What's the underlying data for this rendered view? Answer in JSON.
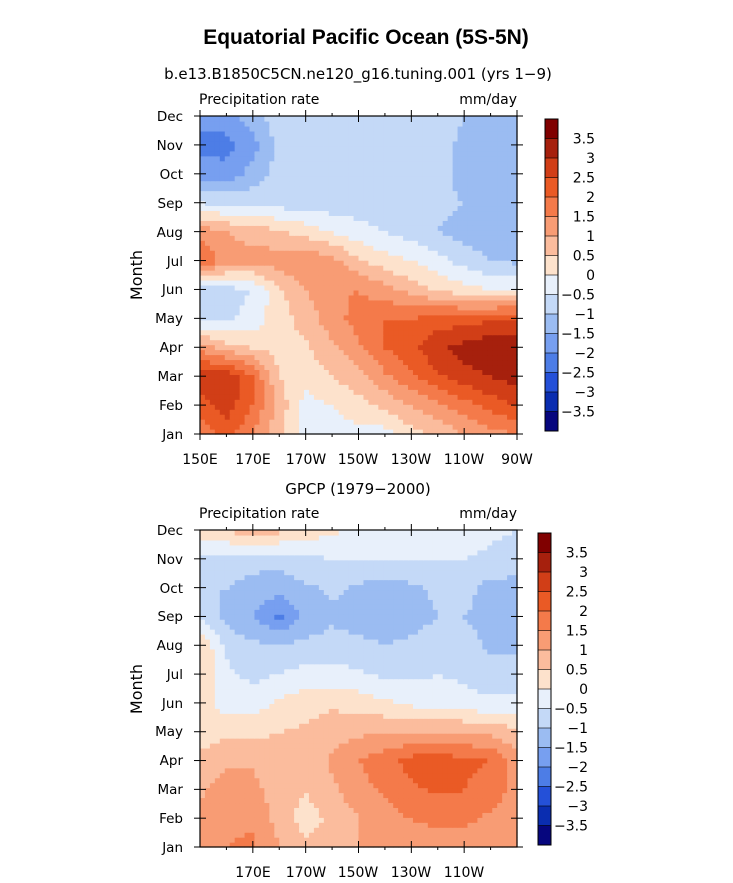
{
  "title": "Equatorial Pacific Ocean (5S-5N)",
  "colorbar_levels": [
    "3.5",
    "3",
    "2.5",
    "2",
    "1.5",
    "1",
    "0.5",
    "0",
    "−0.5",
    "−1",
    "−1.5",
    "−2",
    "−2.5",
    "−3",
    "−3.5"
  ],
  "colors": {
    "scale": [
      "#800000",
      "#a6200d",
      "#d13e17",
      "#ea5a25",
      "#f47a4a",
      "#f89c74",
      "#fbbc9d",
      "#fde2cc",
      "#e8f0fb",
      "#c4d9f7",
      "#9bbcf2",
      "#779ff0",
      "#4d7de6",
      "#2450d8",
      "#0a2db0",
      "#06067e"
    ]
  },
  "charts": [
    {
      "subtitle": "b.e13.B1850C5CN.ne120_g16.tuning.001 (yrs 1−9)",
      "left_label": "Precipitation rate",
      "right_label": "mm/day",
      "ylabel": "Month",
      "y_ticks": [
        "Jan",
        "Feb",
        "Mar",
        "Apr",
        "May",
        "Jun",
        "Jul",
        "Aug",
        "Sep",
        "Oct",
        "Nov",
        "Dec"
      ],
      "x_ticks": [
        "150E",
        "170E",
        "170W",
        "150W",
        "130W",
        "110W",
        "90W"
      ]
    },
    {
      "subtitle": "GPCP (1979−2000)",
      "left_label": "Precipitation rate",
      "right_label": "mm/day",
      "ylabel": "Month",
      "y_ticks": [
        "Jan",
        "Feb",
        "Mar",
        "Apr",
        "May",
        "Jun",
        "Jul",
        "Aug",
        "Sep",
        "Oct",
        "Nov",
        "Dec"
      ],
      "x_ticks": [
        "170E",
        "170W",
        "150W",
        "130W",
        "110W"
      ]
    }
  ],
  "chart_data": [
    {
      "type": "heatmap",
      "title": "b.e13.B1850C5CN.ne120_g16.tuning.001 (yrs 1−9)",
      "xlabel": "",
      "ylabel": "Month",
      "units": "mm/day",
      "x": [
        150,
        160,
        170,
        180,
        190,
        200,
        210,
        220,
        230,
        240,
        250,
        260,
        270
      ],
      "x_tick_labels": [
        "150E",
        "170E",
        "170W",
        "150W",
        "130W",
        "110W",
        "90W"
      ],
      "x_tick_values": [
        150,
        170,
        190,
        210,
        230,
        250,
        270
      ],
      "xlim": [
        150,
        270
      ],
      "y": [
        "Jan",
        "Feb",
        "Mar",
        "Apr",
        "May",
        "Jun",
        "Jul",
        "Aug",
        "Sep",
        "Oct",
        "Nov",
        "Dec"
      ],
      "clim": [
        -3.5,
        3.5
      ],
      "values": [
        [
          1.5,
          2.2,
          1.5,
          0.6,
          -0.2,
          -0.2,
          -0.2,
          -0.2,
          0.3,
          0.6,
          1.0,
          1.3,
          1.5
        ],
        [
          2.3,
          2.8,
          2.0,
          0.8,
          -0.2,
          0.0,
          0.3,
          0.6,
          1.0,
          1.4,
          1.8,
          2.2,
          2.5
        ],
        [
          2.8,
          3.0,
          2.0,
          0.5,
          0.2,
          0.5,
          0.8,
          1.4,
          1.9,
          2.4,
          2.8,
          3.0,
          3.2
        ],
        [
          1.3,
          0.7,
          0.5,
          0.3,
          0.4,
          0.9,
          1.4,
          2.0,
          2.4,
          2.9,
          3.2,
          3.4,
          3.5
        ],
        [
          -0.6,
          -0.6,
          -0.3,
          0.3,
          0.7,
          1.3,
          1.7,
          2.0,
          2.0,
          2.2,
          2.3,
          2.4,
          2.5
        ],
        [
          -0.8,
          -0.7,
          -0.5,
          0.4,
          1.0,
          1.4,
          1.5,
          1.2,
          0.8,
          0.4,
          0.2,
          0.0,
          0.0
        ],
        [
          2.0,
          1.3,
          1.2,
          1.3,
          1.4,
          1.2,
          0.6,
          0.2,
          0.0,
          -0.3,
          -0.7,
          -1.0,
          -1.1
        ],
        [
          1.4,
          1.0,
          0.8,
          0.6,
          0.3,
          0.0,
          -0.3,
          -0.5,
          -0.7,
          -1.0,
          -1.2,
          -1.3,
          -1.3
        ],
        [
          -0.5,
          -0.6,
          -0.6,
          -0.7,
          -0.8,
          -0.8,
          -0.8,
          -0.8,
          -0.8,
          -0.9,
          -1.0,
          -1.1,
          -1.2
        ],
        [
          -1.7,
          -1.8,
          -1.3,
          -0.8,
          -0.6,
          -0.6,
          -0.6,
          -0.6,
          -0.6,
          -0.8,
          -1.2,
          -1.4,
          -1.5
        ],
        [
          -2.2,
          -2.2,
          -1.7,
          -0.8,
          -0.6,
          -0.6,
          -0.6,
          -0.6,
          -0.6,
          -0.7,
          -1.2,
          -1.4,
          -1.5
        ],
        [
          -1.7,
          -1.7,
          -1.2,
          -0.7,
          -0.6,
          -0.6,
          -0.6,
          -0.6,
          -0.6,
          -0.6,
          -1.0,
          -1.3,
          -1.4
        ]
      ]
    },
    {
      "type": "heatmap",
      "title": "GPCP (1979−2000)",
      "xlabel": "",
      "ylabel": "Month",
      "units": "mm/day",
      "x": [
        150,
        160,
        170,
        180,
        190,
        200,
        210,
        220,
        230,
        240,
        250,
        260,
        270
      ],
      "x_tick_labels": [
        "170E",
        "170W",
        "150W",
        "130W",
        "110W"
      ],
      "x_tick_values": [
        170,
        190,
        210,
        230,
        250
      ],
      "xlim": [
        150,
        270
      ],
      "y": [
        "Jan",
        "Feb",
        "Mar",
        "Apr",
        "May",
        "Jun",
        "Jul",
        "Aug",
        "Sep",
        "Oct",
        "Nov",
        "Dec"
      ],
      "clim": [
        -3.5,
        3.5
      ],
      "values": [
        [
          1.2,
          1.5,
          1.6,
          1.0,
          0.6,
          0.8,
          1.0,
          1.1,
          1.3,
          1.3,
          1.3,
          1.2,
          1.0
        ],
        [
          1.2,
          1.4,
          1.4,
          0.8,
          0.3,
          0.6,
          1.0,
          1.3,
          1.5,
          1.6,
          1.6,
          1.4,
          1.1
        ],
        [
          0.9,
          1.3,
          1.2,
          0.7,
          0.5,
          0.9,
          1.3,
          1.6,
          1.9,
          2.1,
          2.0,
          1.8,
          1.3
        ],
        [
          0.6,
          0.9,
          0.9,
          0.7,
          0.6,
          1.1,
          1.5,
          1.8,
          2.2,
          2.4,
          2.1,
          2.0,
          1.2
        ],
        [
          0.3,
          0.4,
          0.4,
          0.5,
          0.6,
          0.8,
          0.9,
          1.0,
          1.0,
          1.0,
          1.0,
          0.9,
          0.6
        ],
        [
          0.3,
          -0.3,
          -0.3,
          0.1,
          0.3,
          0.4,
          0.3,
          0.1,
          -0.1,
          -0.2,
          -0.3,
          -0.4,
          -0.4
        ],
        [
          0.6,
          -0.4,
          -0.6,
          -0.5,
          -0.3,
          -0.3,
          -0.4,
          -0.6,
          -0.6,
          -0.5,
          -0.6,
          -0.8,
          -0.8
        ],
        [
          0.5,
          -0.6,
          -0.9,
          -0.9,
          -0.9,
          -0.8,
          -0.9,
          -1.0,
          -0.9,
          -0.7,
          -0.8,
          -1.1,
          -1.1
        ],
        [
          -0.6,
          -1.2,
          -1.5,
          -2.1,
          -1.3,
          -1.1,
          -1.2,
          -1.2,
          -1.2,
          -1.0,
          -1.0,
          -1.2,
          -1.2
        ],
        [
          -1.0,
          -1.0,
          -1.2,
          -1.3,
          -1.1,
          -0.9,
          -1.1,
          -1.2,
          -1.1,
          -0.9,
          -0.8,
          -1.2,
          -1.2
        ],
        [
          -0.6,
          -0.7,
          -0.8,
          -0.8,
          -0.6,
          -0.5,
          -0.5,
          -0.5,
          -0.5,
          -0.5,
          -0.5,
          -0.6,
          -0.7
        ],
        [
          0.2,
          0.5,
          0.9,
          0.6,
          0.3,
          0.1,
          -0.1,
          -0.2,
          -0.3,
          -0.3,
          -0.3,
          -0.4,
          -0.5
        ]
      ]
    }
  ]
}
